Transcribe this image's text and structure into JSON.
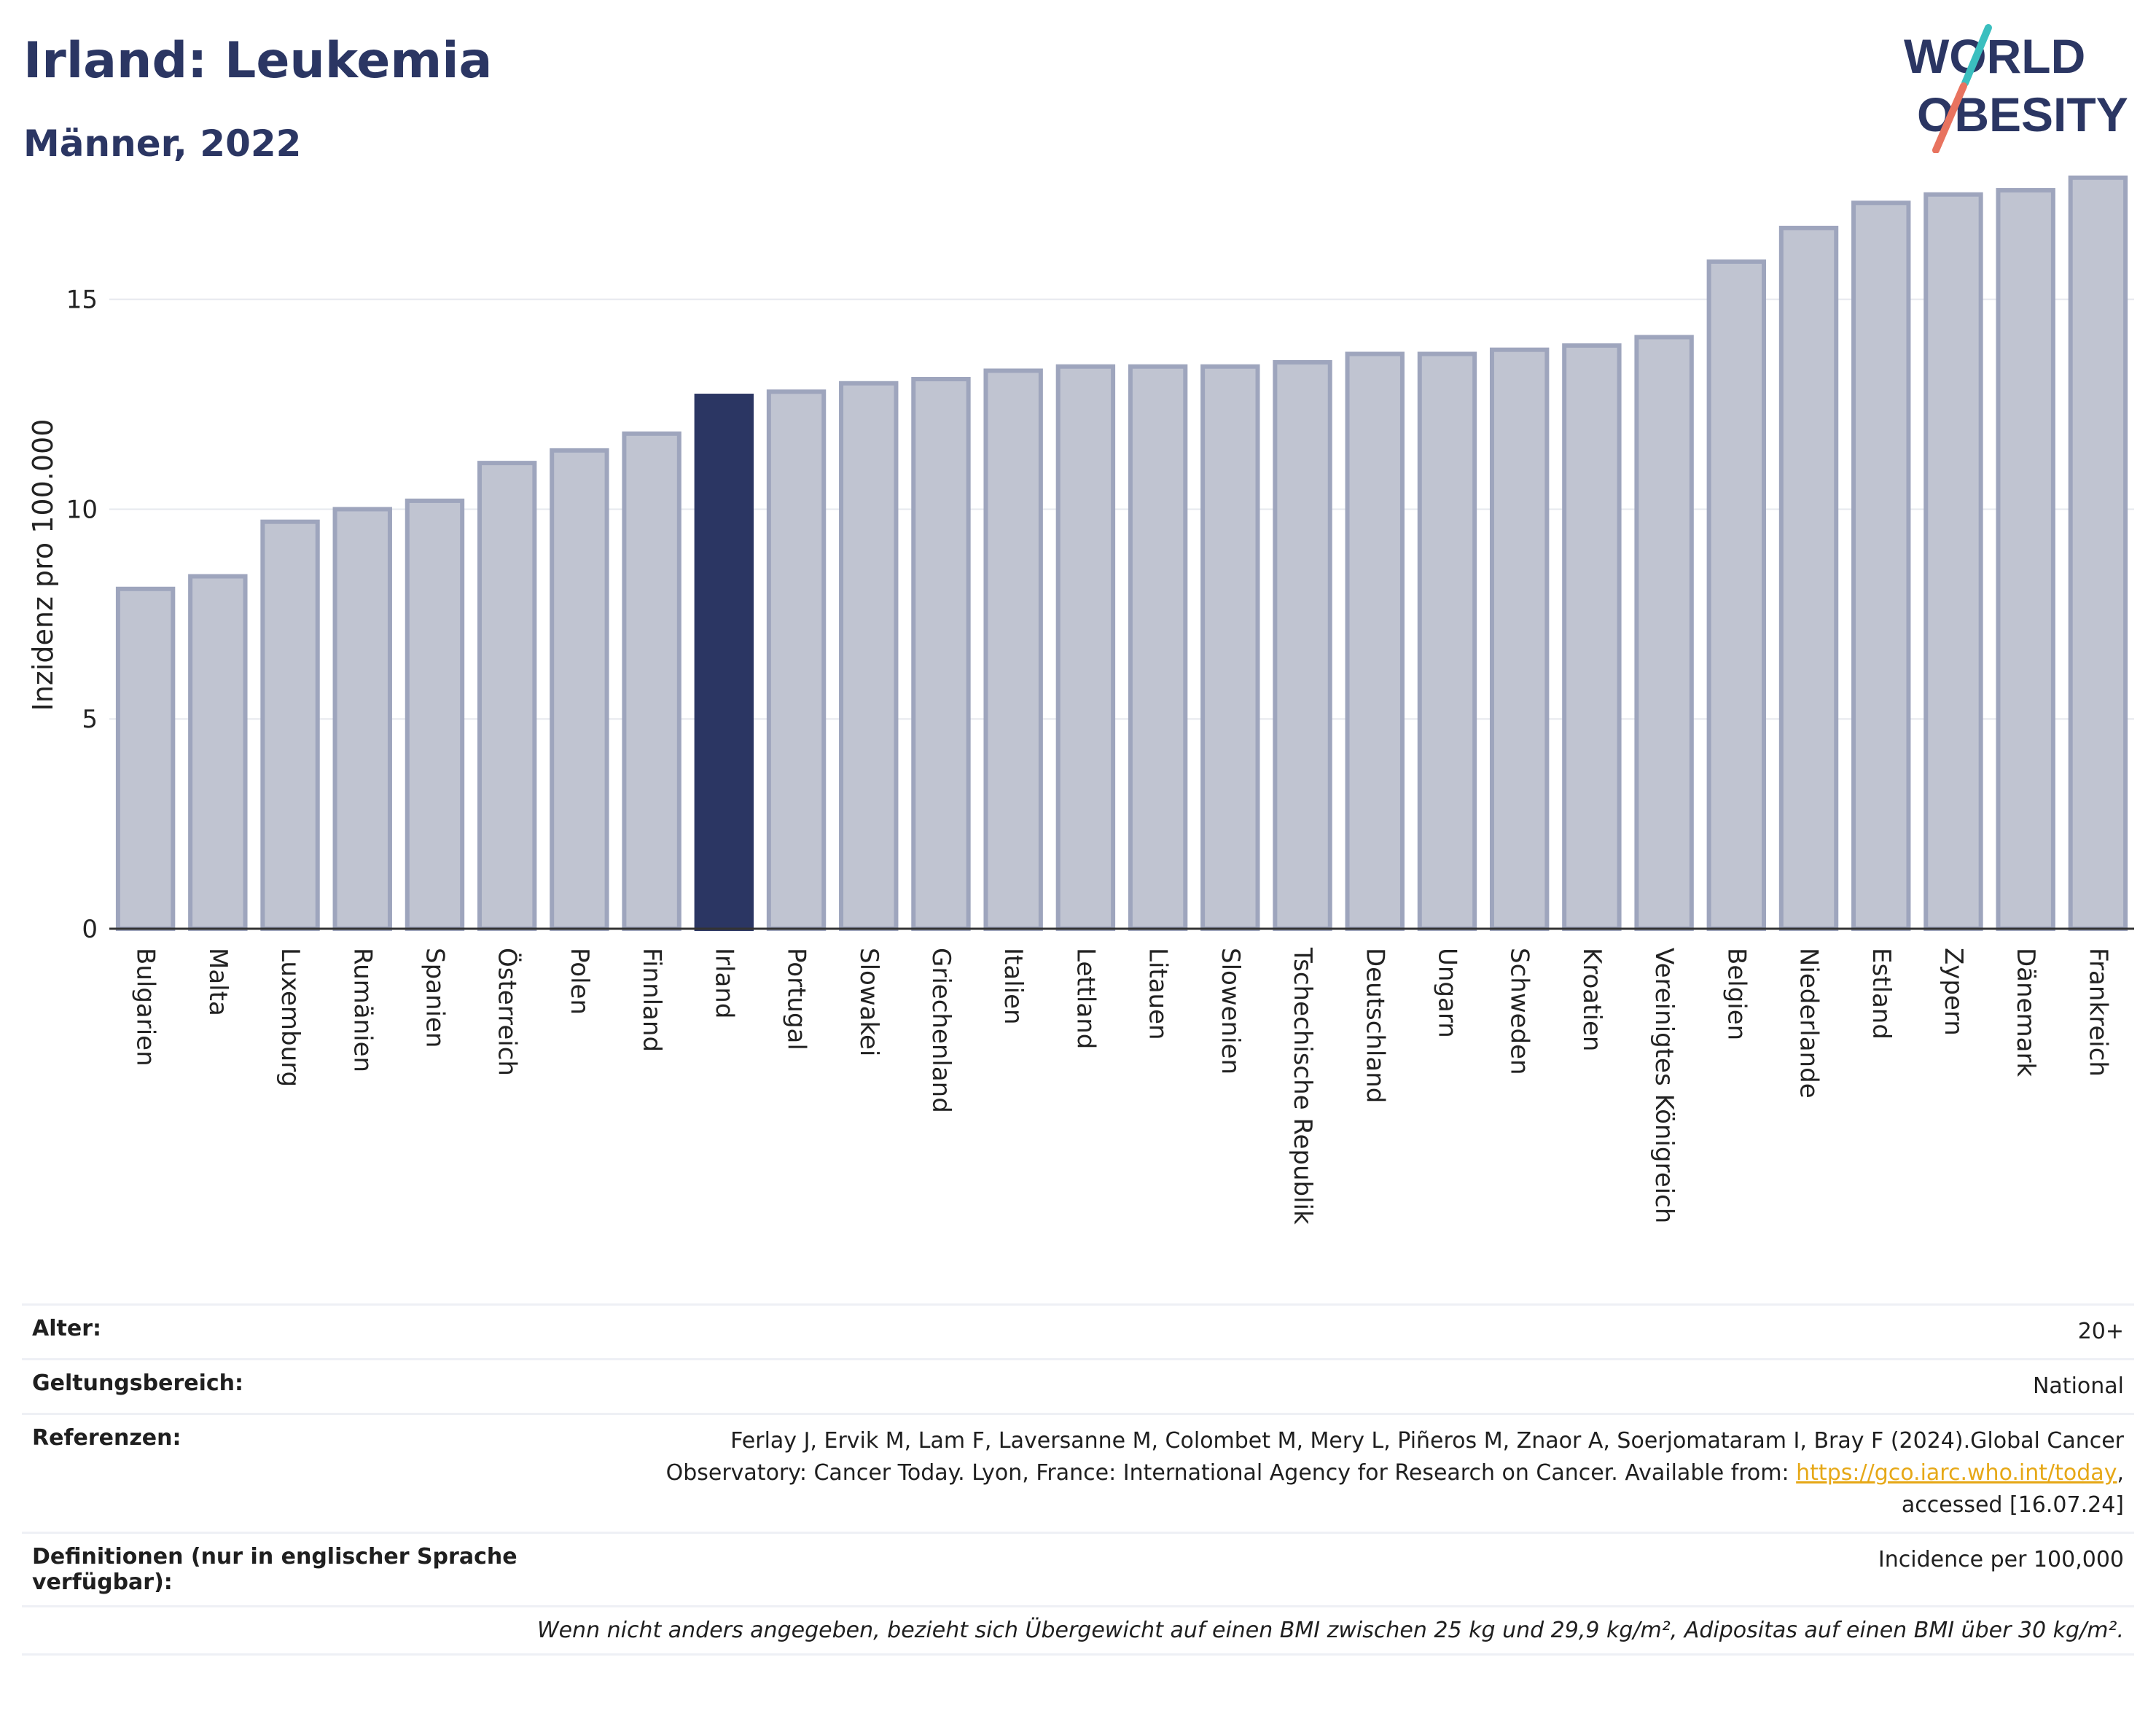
{
  "header": {
    "title": "Irland: Leukemia",
    "subtitle": "Männer, 2022",
    "logo_line1": "WORLD",
    "logo_line2": "OBESITY"
  },
  "colors": {
    "highlight": "#2b3663",
    "bar": "#c0c4d1",
    "bar_border": "#9ea5bd",
    "logo_teal": "#3bbfbf",
    "logo_red": "#e8735f"
  },
  "chart_data": {
    "type": "bar",
    "ylabel": "Inzidenz pro 100.000",
    "ylim": [
      0,
      18
    ],
    "yticks": [
      0,
      5,
      10,
      15
    ],
    "grid": true,
    "highlight_category": "Irland",
    "categories": [
      "Bulgarien",
      "Malta",
      "Luxemburg",
      "Rumänien",
      "Spanien",
      "Österreich",
      "Polen",
      "Finnland",
      "Irland",
      "Portugal",
      "Slowakei",
      "Griechenland",
      "Italien",
      "Lettland",
      "Litauen",
      "Slowenien",
      "Tschechische Republik",
      "Deutschland",
      "Ungarn",
      "Schweden",
      "Kroatien",
      "Vereinigtes Königreich",
      "Belgien",
      "Niederlande",
      "Estland",
      "Zypern",
      "Dänemark",
      "Frankreich"
    ],
    "values": [
      8.1,
      8.4,
      9.7,
      10.0,
      10.2,
      11.1,
      11.4,
      11.8,
      12.7,
      12.8,
      13.0,
      13.1,
      13.3,
      13.4,
      13.4,
      13.4,
      13.5,
      13.7,
      13.7,
      13.8,
      13.9,
      14.1,
      15.9,
      16.7,
      17.3,
      17.5,
      17.6,
      17.9
    ]
  },
  "info": {
    "age_label": "Alter:",
    "age_value": "20+",
    "scope_label": "Geltungsbereich:",
    "scope_value": "National",
    "refs_label": "Referenzen:",
    "refs_text": "Ferlay J, Ervik M, Lam F, Laversanne M, Colombet M, Mery L, Piñeros M, Znaor A, Soerjomataram I, Bray F (2024).Global Cancer Observatory: Cancer Today. Lyon, France: International Agency for Research on Cancer. Available from:",
    "refs_link": "https://gco.iarc.who.int/today",
    "refs_tail": ", accessed [16.07.24]",
    "defs_label": "Definitionen (nur in englischer Sprache verfügbar):",
    "defs_value": "Incidence per 100,000",
    "note": "Wenn nicht anders angegeben, bezieht sich Übergewicht auf einen BMI zwischen 25 kg und 29,9 kg/m², Adipositas auf einen BMI über 30 kg/m²."
  }
}
